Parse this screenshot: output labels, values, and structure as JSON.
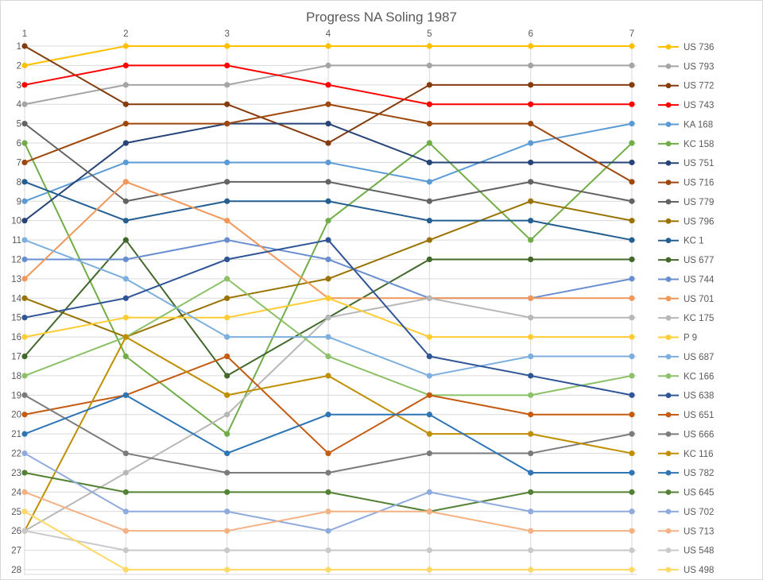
{
  "window": {
    "background": "#ffffff",
    "border_color": "#d8d8d8"
  },
  "chart_data": {
    "type": "line",
    "subtype": "bump-rank-chart",
    "title": "Progress NA Soling 1987",
    "title_color": "#595959",
    "xlabel": "",
    "ylabel": "",
    "x": [
      1,
      2,
      3,
      4,
      5,
      6,
      7
    ],
    "x_axis_position": "top",
    "y_axis": {
      "min": 1,
      "max": 28,
      "inverted": true,
      "tick_step": 1
    },
    "grid": {
      "horizontal": true,
      "vertical": true,
      "color": "#d9d9d9"
    },
    "legend_position": "right",
    "text_color": "#595959",
    "series": [
      {
        "name": "US 736",
        "color": "#FFC000",
        "values": [
          2,
          1,
          1,
          1,
          1,
          1,
          1
        ]
      },
      {
        "name": "US 793",
        "color": "#A5A5A5",
        "values": [
          4,
          3,
          3,
          2,
          2,
          2,
          2
        ]
      },
      {
        "name": "US 772",
        "color": "#843C0C",
        "values": [
          1,
          4,
          4,
          6,
          3,
          3,
          3
        ]
      },
      {
        "name": "US 743",
        "color": "#FF0000",
        "values": [
          3,
          2,
          2,
          3,
          4,
          4,
          4
        ]
      },
      {
        "name": "KA 168",
        "color": "#5B9BD5",
        "values": [
          9,
          7,
          7,
          7,
          8,
          6,
          5
        ]
      },
      {
        "name": "KC 158",
        "color": "#70AD47",
        "values": [
          6,
          17,
          21,
          10,
          6,
          11,
          6
        ]
      },
      {
        "name": "US 751",
        "color": "#264478",
        "values": [
          10,
          6,
          5,
          5,
          7,
          7,
          7
        ]
      },
      {
        "name": "US 716",
        "color": "#9E480E",
        "values": [
          7,
          5,
          5,
          4,
          5,
          5,
          8
        ]
      },
      {
        "name": "US 779",
        "color": "#636363",
        "values": [
          5,
          9,
          8,
          8,
          9,
          8,
          9
        ]
      },
      {
        "name": "US 796",
        "color": "#997300",
        "values": [
          14,
          16,
          14,
          13,
          11,
          9,
          10
        ]
      },
      {
        "name": "KC 1",
        "color": "#255E91",
        "values": [
          8,
          10,
          9,
          9,
          10,
          10,
          11
        ]
      },
      {
        "name": "US 677",
        "color": "#43682B",
        "values": [
          17,
          11,
          18,
          15,
          12,
          12,
          12
        ]
      },
      {
        "name": "US 744",
        "color": "#698ED0",
        "values": [
          12,
          12,
          11,
          12,
          14,
          14,
          13
        ]
      },
      {
        "name": "US 701",
        "color": "#F1975A",
        "values": [
          13,
          8,
          10,
          14,
          14,
          14,
          14
        ]
      },
      {
        "name": "KC 175",
        "color": "#B7B7B7",
        "values": [
          26,
          23,
          20,
          15,
          14,
          15,
          15
        ]
      },
      {
        "name": "P 9",
        "color": "#FFCD33",
        "values": [
          16,
          15,
          15,
          14,
          16,
          16,
          16
        ]
      },
      {
        "name": "US 687",
        "color": "#7CAFDD",
        "values": [
          11,
          13,
          16,
          16,
          18,
          17,
          17
        ]
      },
      {
        "name": "KC 166",
        "color": "#8CC168",
        "values": [
          18,
          16,
          13,
          17,
          19,
          19,
          18
        ]
      },
      {
        "name": "US 638",
        "color": "#2F5597",
        "values": [
          15,
          14,
          12,
          11,
          17,
          18,
          19
        ]
      },
      {
        "name": "US 651",
        "color": "#C55A11",
        "values": [
          20,
          19,
          17,
          22,
          19,
          20,
          20
        ]
      },
      {
        "name": "US 666",
        "color": "#7B7B7B",
        "values": [
          19,
          22,
          23,
          23,
          22,
          22,
          21
        ]
      },
      {
        "name": "KC 116",
        "color": "#BF8F00",
        "values": [
          26,
          16,
          19,
          18,
          21,
          21,
          22
        ]
      },
      {
        "name": "US 782",
        "color": "#2E75B6",
        "values": [
          21,
          19,
          22,
          20,
          20,
          23,
          23
        ]
      },
      {
        "name": "US 645",
        "color": "#548235",
        "values": [
          23,
          24,
          24,
          24,
          25,
          24,
          24
        ]
      },
      {
        "name": "US 702",
        "color": "#8FAADC",
        "values": [
          22,
          25,
          25,
          26,
          24,
          25,
          25
        ]
      },
      {
        "name": "US 713",
        "color": "#F4B183",
        "values": [
          24,
          26,
          26,
          25,
          25,
          26,
          26
        ]
      },
      {
        "name": "US 548",
        "color": "#C9C9C9",
        "values": [
          26,
          27,
          27,
          27,
          27,
          27,
          27
        ]
      },
      {
        "name": "US 498",
        "color": "#FFD966",
        "values": [
          25,
          28,
          28,
          28,
          28,
          28,
          28
        ]
      }
    ]
  }
}
